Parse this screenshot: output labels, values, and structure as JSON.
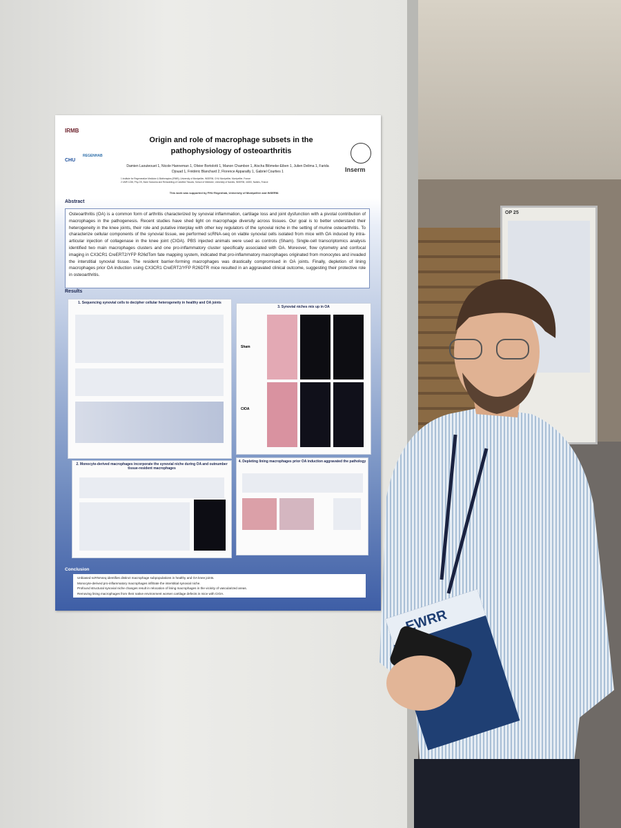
{
  "poster": {
    "logos": {
      "irmb": "IRMB",
      "chu": "CHU",
      "regenhab": "REGENHAB",
      "inserm": "Inserm"
    },
    "title": "Origin and role of macrophage subsets in the pathophysiology of osteoarthritis",
    "authors": "Damien Laouteouet 1, Nicole Hanneman 1, Olivier Bortolotti 1, Manon Chambon 1, Aïscha Blömeke-Eiben 1, Julien Delima 1, Farida Djouad 1, Frédéric Blanchard 2, Florence Apparailly 1, Gabriel Courties 1",
    "affiliations": [
      "1 Institute for Regenerative Medicine & Biotherapies (IRMB), University of Montpellier, INSERM, CHU Montpellier, Montpellier, France",
      "2 UMR 1238, Phy-OS, Bone Sarcoma and Remodeling of Calcified Tissues, School of Medicine, University of Nantes, INSERM, 44000, Nantes, France"
    ],
    "funding": "This work was supported by FHU Regenhab, University of Montpellier and INSERM.",
    "abstract": {
      "heading": "Abstract",
      "text": "Osteoarthritis (OA) is a common form of arthritis characterized by synovial inflammation, cartilage loss and joint dysfunction with a pivotal contribution of macrophages in the pathogenesis. Recent studies have shed light on macrophage diversity across tissues. Our goal is to better understand their heterogeneity in the knee joints, their role and putative interplay with other key regulators of the synovial niche in the setting of murine osteoarthritis. To characterize cellular components of the synovial tissue, we performed scRNA-seq on viable synovial cells isolated from mice with OA induced by intra-articular injection of collagenase in the knee joint (CIOA). PBS injected animals were used as controls (Sham). Single-cell transcriptomics analysis identified two main macrophages clusters and one pro-inflammatory cluster specifically associated with OA. Moreover, flow cytometry and confocal imaging in CX3CR1 CreERT2/YFP R26dTom fate mapping system, indicated that pro-inflammatory macrophages originated from monocytes and invaded the interstitial synovial tissue. The resident barrier-forming macrophages was drastically compromised in OA joints. Finally, depletion of lining macrophages prior OA induction using CX3CR1 CreERT2/YFP R26DTR mice resulted in an aggravated clinical outcome, suggesting their protective role in osteoarthritis."
    },
    "results": {
      "heading": "Results",
      "panels": [
        "1. Sequencing synovial cells to decipher cellular heterogeneity in healthy and OA joints",
        "3. Synovial niches mix up in OA",
        "2. Monocyte-derived macrophages incorporate the synovial niche during OA and outnumber tissue-resident macrophages",
        "4. Depleting lining macrophages prior OA induction aggravated the pathology"
      ],
      "conditions": [
        "Sham",
        "CIOA"
      ]
    },
    "conclusion": {
      "heading": "Conclusion",
      "points": [
        "Unbiased scRNAseq identifies distinct macrophage subpopulations in healthy and OA knee joints.",
        "Monocyte-derived pro-inflammatory macrophages infiltrate the interstitial synovial niche.",
        "Profound structural synovial niche changes result in relocation of lining macrophages in the vicinity of vascularized areas.",
        "Removing lining macrophages from their native environment worsen cartilage defects in mice with CIOA."
      ]
    },
    "booth": "OP 25",
    "booklet": "EWRR"
  }
}
